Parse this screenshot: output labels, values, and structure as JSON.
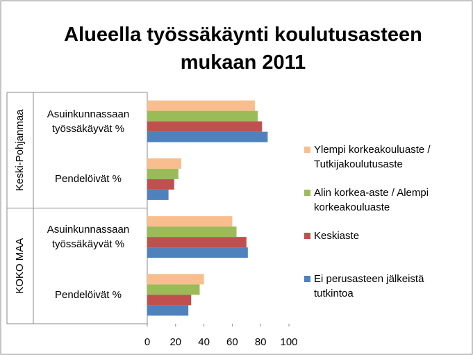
{
  "chart_data": {
    "type": "bar",
    "orientation": "horizontal",
    "title": "Alueella työssäkäynti koulutusasteen mukaan 2011",
    "groups": [
      "Keski-Pohjanmaa",
      "KOKO MAA"
    ],
    "categories": [
      "Asuinkunnassaan työssäkäyvät %",
      "Pendelöivät %",
      "Asuinkunnassaan työssäkäyvät %",
      "Pendelöivät %"
    ],
    "series": [
      {
        "name": "Ylempi korkeakouluaste / Tutkijakoulutusaste",
        "color": "#f9be8e",
        "values": [
          76,
          24,
          60,
          40
        ]
      },
      {
        "name": "Alin korkea-aste / Alempi korkeakouluaste",
        "color": "#9bbb59",
        "values": [
          78,
          22,
          63,
          37
        ]
      },
      {
        "name": "Keskiaste",
        "color": "#c0504d",
        "values": [
          81,
          19,
          70,
          31
        ]
      },
      {
        "name": "Ei perusasteen jälkeistä tutkintoa",
        "color": "#4f81bd",
        "values": [
          85,
          15,
          71,
          29
        ]
      }
    ],
    "xlim": [
      0,
      100
    ],
    "xticks": [
      0,
      20,
      40,
      60,
      80,
      100
    ],
    "legend": "right"
  }
}
